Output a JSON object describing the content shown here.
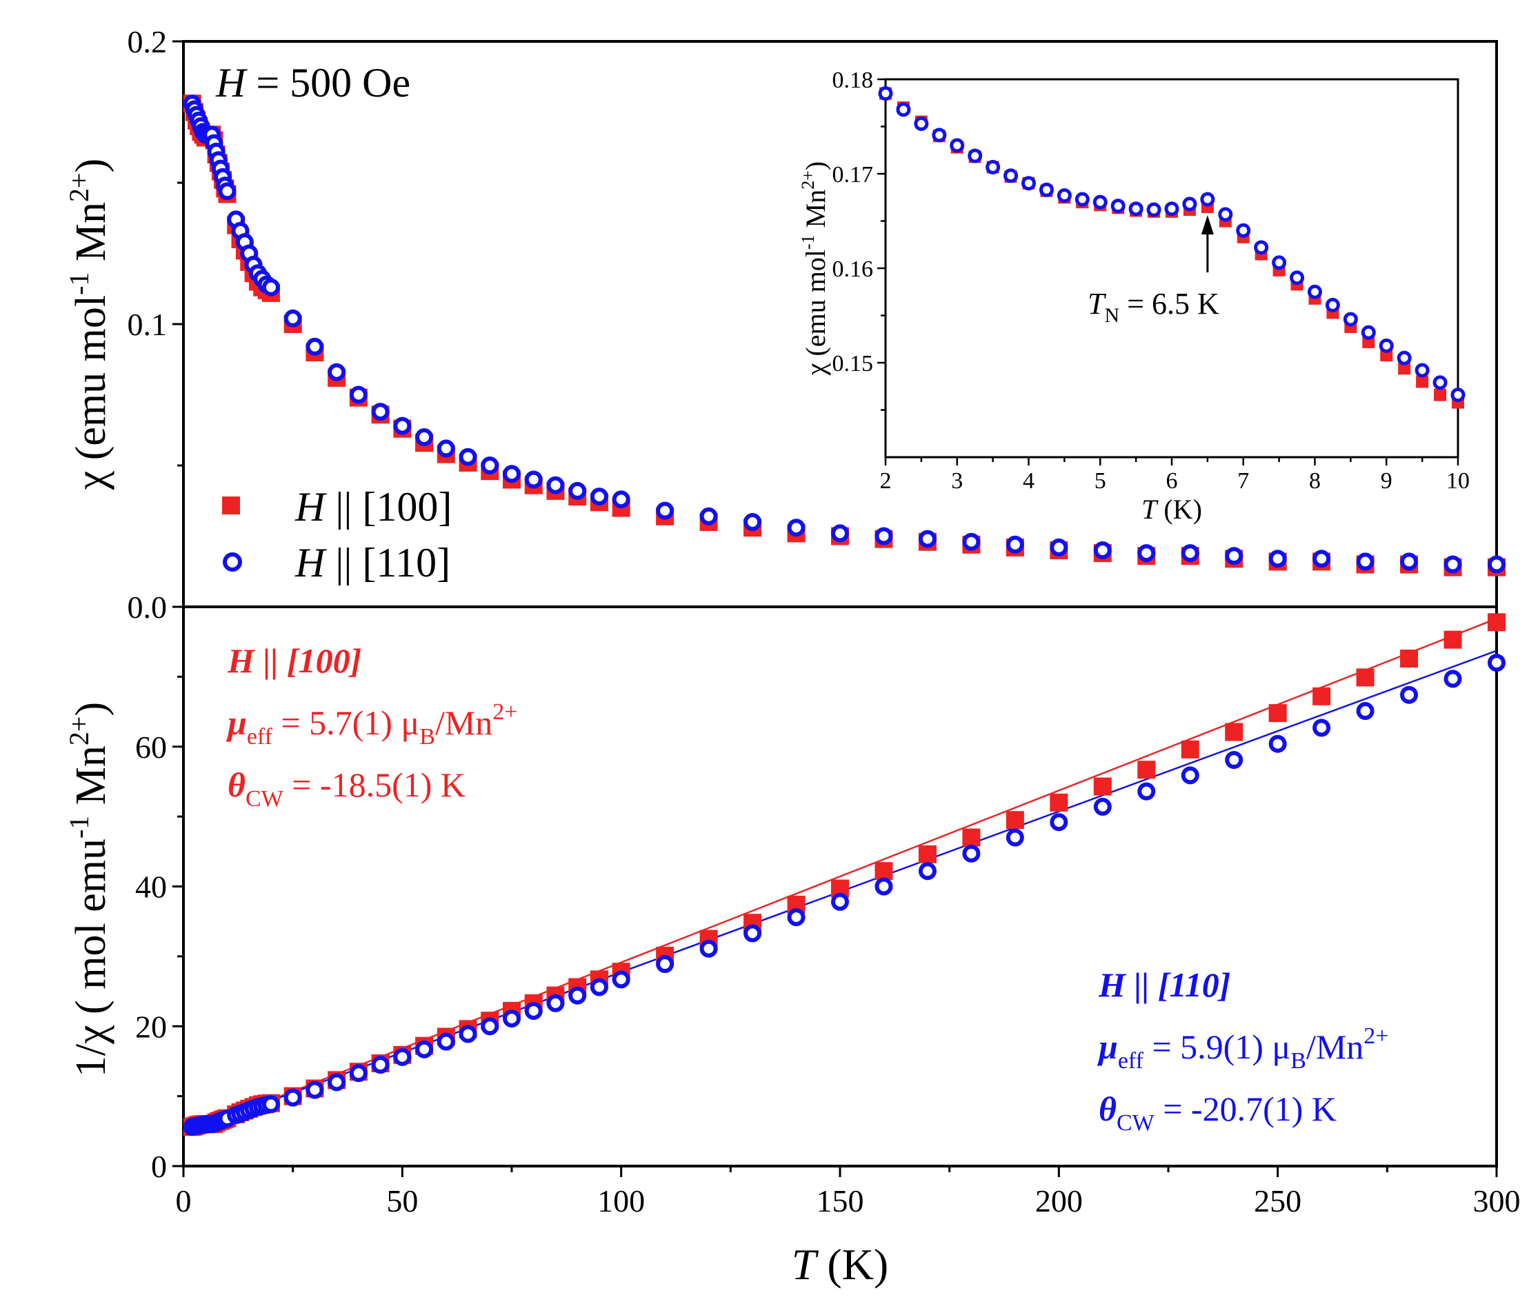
{
  "colors": {
    "red": "#ee2222",
    "blue": "#1111ee",
    "axis": "#000000"
  },
  "chart_data": [
    {
      "id": "top",
      "type": "scatter",
      "title": "",
      "annotation": {
        "H": "H",
        "eq": " = 500 Oe"
      },
      "ylabel": {
        "main": "χ (emu mol",
        "sup1": "-1",
        "mid": " Mn",
        "sup2": "2+",
        "end": ")"
      },
      "xlim": [
        0,
        300
      ],
      "ylim": [
        0,
        0.2
      ],
      "yticks": [
        0.0,
        0.1,
        0.2
      ],
      "ytick_labels": [
        "0.0",
        "0.1",
        "0.2"
      ],
      "legend": {
        "position": "bottom-left",
        "entries": [
          {
            "name": "H || [100]",
            "H": "H",
            "rest": " || [100]",
            "marker": "square",
            "color": "#ee2222"
          },
          {
            "name": "H || [110]",
            "H": "H",
            "rest": " || [110]",
            "marker": "open-circle",
            "color": "#1111ee"
          }
        ]
      },
      "series": [
        {
          "name": "H || [100]",
          "x": [
            2,
            2.5,
            3,
            3.5,
            4,
            4.5,
            5,
            5.5,
            6,
            6.5,
            7,
            7.5,
            8,
            8.5,
            9,
            9.5,
            10,
            12,
            13,
            14,
            15,
            16,
            17,
            18,
            19,
            20,
            25,
            30,
            35,
            40,
            45,
            50,
            55,
            60,
            65,
            70,
            75,
            80,
            85,
            90,
            95,
            100,
            110,
            120,
            130,
            140,
            150,
            160,
            170,
            180,
            190,
            200,
            210,
            220,
            230,
            240,
            250,
            260,
            270,
            280,
            290,
            300
          ],
          "y": [
            0.178,
            0.175,
            0.172,
            0.17,
            0.168,
            0.167,
            0.166,
            0.166,
            0.166,
            0.167,
            0.165,
            0.16,
            0.157,
            0.154,
            0.151,
            0.148,
            0.146,
            0.135,
            0.13,
            0.126,
            0.122,
            0.118,
            0.115,
            0.113,
            0.112,
            0.111,
            0.1,
            0.09,
            0.081,
            0.074,
            0.068,
            0.063,
            0.058,
            0.054,
            0.051,
            0.048,
            0.045,
            0.043,
            0.041,
            0.039,
            0.037,
            0.035,
            0.032,
            0.03,
            0.028,
            0.026,
            0.025,
            0.024,
            0.023,
            0.022,
            0.021,
            0.02,
            0.019,
            0.018,
            0.018,
            0.017,
            0.016,
            0.016,
            0.015,
            0.015,
            0.014,
            0.014
          ]
        },
        {
          "name": "H || [110]",
          "x": [
            2,
            2.5,
            3,
            3.5,
            4,
            4.5,
            5,
            5.5,
            6,
            6.5,
            7,
            7.5,
            8,
            8.5,
            9,
            9.5,
            10,
            12,
            13,
            14,
            15,
            16,
            17,
            18,
            19,
            20,
            25,
            30,
            35,
            40,
            45,
            50,
            55,
            60,
            65,
            70,
            75,
            80,
            85,
            90,
            95,
            100,
            110,
            120,
            130,
            140,
            150,
            160,
            170,
            180,
            190,
            200,
            210,
            220,
            230,
            240,
            250,
            260,
            270,
            280,
            290,
            300
          ],
          "y": [
            0.178,
            0.176,
            0.174,
            0.172,
            0.17,
            0.168,
            0.167,
            0.167,
            0.167,
            0.167,
            0.164,
            0.161,
            0.158,
            0.155,
            0.152,
            0.149,
            0.147,
            0.137,
            0.133,
            0.129,
            0.125,
            0.121,
            0.118,
            0.116,
            0.114,
            0.113,
            0.102,
            0.092,
            0.083,
            0.075,
            0.069,
            0.064,
            0.06,
            0.056,
            0.053,
            0.05,
            0.047,
            0.045,
            0.043,
            0.041,
            0.039,
            0.038,
            0.034,
            0.032,
            0.03,
            0.028,
            0.026,
            0.025,
            0.024,
            0.023,
            0.022,
            0.021,
            0.02,
            0.019,
            0.019,
            0.018,
            0.017,
            0.017,
            0.016,
            0.016,
            0.015,
            0.015
          ]
        }
      ]
    },
    {
      "id": "inset",
      "type": "scatter",
      "xlabel": {
        "T": "T",
        "rest": " (K)"
      },
      "ylabel": {
        "main": "χ (emu mol",
        "sup1": "-1",
        "mid": " Mn",
        "sup2": "2+",
        "end": ")"
      },
      "xlim": [
        2,
        10
      ],
      "ylim": [
        0.14,
        0.18
      ],
      "xticks": [
        2,
        3,
        4,
        5,
        6,
        7,
        8,
        9,
        10
      ],
      "xtick_labels": [
        "2",
        "3",
        "4",
        "5",
        "6",
        "7",
        "8",
        "9",
        "10"
      ],
      "yticks": [
        0.15,
        0.16,
        0.17,
        0.18
      ],
      "ytick_labels": [
        "0.15",
        "0.16",
        "0.17",
        "0.18"
      ],
      "annotation": {
        "T": "T",
        "sub": "N",
        "rest": " = 6.5 K",
        "arrow_x": 6.5
      },
      "series": [
        {
          "name": "H || [100]",
          "x": [
            2,
            2.25,
            2.5,
            2.75,
            3,
            3.25,
            3.5,
            3.75,
            4,
            4.25,
            4.5,
            4.75,
            5,
            5.25,
            5.5,
            5.75,
            6,
            6.25,
            6.5,
            6.75,
            7,
            7.25,
            7.5,
            7.75,
            8,
            8.25,
            8.5,
            8.75,
            9,
            9.25,
            9.5,
            9.75,
            10
          ],
          "y": [
            0.1785,
            0.177,
            0.1755,
            0.174,
            0.1728,
            0.1718,
            0.1707,
            0.1697,
            0.169,
            0.1682,
            0.1675,
            0.167,
            0.1667,
            0.1664,
            0.1661,
            0.166,
            0.166,
            0.1662,
            0.1665,
            0.165,
            0.1633,
            0.1615,
            0.1598,
            0.1583,
            0.1568,
            0.1553,
            0.1538,
            0.1522,
            0.1508,
            0.1494,
            0.148,
            0.1466,
            0.1458
          ]
        },
        {
          "name": "H || [110]",
          "x": [
            2,
            2.25,
            2.5,
            2.75,
            3,
            3.25,
            3.5,
            3.75,
            4,
            4.25,
            4.5,
            4.75,
            5,
            5.25,
            5.5,
            5.75,
            6,
            6.25,
            6.5,
            6.75,
            7,
            7.25,
            7.5,
            7.75,
            8,
            8.25,
            8.5,
            8.75,
            9,
            9.25,
            9.5,
            9.75,
            10
          ],
          "y": [
            0.1785,
            0.1768,
            0.1753,
            0.1741,
            0.173,
            0.1719,
            0.1707,
            0.1698,
            0.169,
            0.1683,
            0.1677,
            0.1673,
            0.167,
            0.1666,
            0.1663,
            0.1662,
            0.1663,
            0.1668,
            0.1673,
            0.1657,
            0.164,
            0.1622,
            0.1606,
            0.159,
            0.1575,
            0.1561,
            0.1546,
            0.1532,
            0.1518,
            0.1505,
            0.1492,
            0.1479,
            0.1466
          ]
        }
      ]
    },
    {
      "id": "bottom",
      "type": "scatter",
      "xlabel": {
        "T": "T",
        "rest": " (K)"
      },
      "ylabel": {
        "main": "1/χ ( mol emu",
        "sup1": "-1",
        "mid": " Mn",
        "sup2": "2+",
        "end": ")"
      },
      "xlim": [
        0,
        300
      ],
      "ylim": [
        0,
        80
      ],
      "xticks": [
        0,
        50,
        100,
        150,
        200,
        250,
        300
      ],
      "xtick_labels": [
        "0",
        "50",
        "100",
        "150",
        "200",
        "250",
        "300"
      ],
      "yticks": [
        0,
        20,
        40,
        60
      ],
      "ytick_labels": [
        "0",
        "20",
        "40",
        "60"
      ],
      "annotations": [
        {
          "series": "H || [100]",
          "line1": "H || [100]",
          "mu_sym": "μ",
          "mu_sub": "eff",
          "mu_rest": " = 5.7(1) μ",
          "muB_sub": "B",
          "mu_tail": "/Mn",
          "mu_sup": "2+",
          "th_sym": "θ",
          "th_sub": "CW",
          "th_rest": " = -18.5(1) K"
        },
        {
          "series": "H || [110]",
          "line1": "H || [110]",
          "mu_sym": "μ",
          "mu_sub": "eff",
          "mu_rest": " = 5.9(1) μ",
          "muB_sub": "B",
          "mu_tail": "/Mn",
          "mu_sup": "2+",
          "th_sym": "θ",
          "th_sub": "CW",
          "th_rest": " = -20.7(1) K"
        }
      ],
      "fits": [
        {
          "series": "H || [100]",
          "theta": -18.5,
          "C": 4.067,
          "x_range": [
            2,
            300
          ]
        },
        {
          "series": "H || [110]",
          "theta": -20.7,
          "C": 4.35,
          "x_range": [
            2,
            300
          ]
        }
      ],
      "series": [
        {
          "name": "H || [100]",
          "x": [
            2,
            2.5,
            3,
            3.5,
            4,
            4.5,
            5,
            5.5,
            6,
            6.5,
            7,
            7.5,
            8,
            8.5,
            9,
            9.5,
            10,
            12,
            13,
            14,
            15,
            16,
            17,
            18,
            19,
            20,
            25,
            30,
            35,
            40,
            45,
            50,
            55,
            60,
            65,
            70,
            75,
            80,
            85,
            90,
            95,
            100,
            110,
            120,
            130,
            140,
            150,
            160,
            170,
            180,
            190,
            200,
            210,
            220,
            230,
            240,
            250,
            260,
            270,
            280,
            290,
            300
          ],
          "y": [
            5.6,
            5.7,
            5.8,
            5.9,
            5.95,
            6.0,
            6.0,
            6.0,
            6.0,
            6.0,
            6.05,
            6.25,
            6.4,
            6.5,
            6.65,
            6.75,
            6.85,
            7.4,
            7.7,
            7.95,
            8.2,
            8.45,
            8.7,
            8.85,
            8.95,
            9.0,
            10.0,
            11.1,
            12.3,
            13.5,
            14.7,
            15.9,
            17.2,
            18.5,
            19.6,
            20.8,
            22.2,
            23.3,
            24.4,
            25.6,
            26.7,
            27.8,
            30.1,
            32.5,
            34.8,
            37.4,
            39.7,
            42.2,
            44.6,
            47.0,
            49.5,
            52.0,
            54.3,
            56.7,
            59.6,
            62.1,
            64.8,
            67.2,
            69.9,
            72.6,
            75.3,
            77.8
          ]
        },
        {
          "name": "H || [110]",
          "x": [
            2,
            2.5,
            3,
            3.5,
            4,
            4.5,
            5,
            5.5,
            6,
            6.5,
            7,
            7.5,
            8,
            8.5,
            9,
            9.5,
            10,
            12,
            13,
            14,
            15,
            16,
            17,
            18,
            19,
            20,
            25,
            30,
            35,
            40,
            45,
            50,
            55,
            60,
            65,
            70,
            75,
            80,
            85,
            90,
            95,
            100,
            110,
            120,
            130,
            140,
            150,
            160,
            170,
            180,
            190,
            200,
            210,
            220,
            230,
            240,
            250,
            260,
            270,
            280,
            290,
            300
          ],
          "y": [
            5.6,
            5.7,
            5.75,
            5.8,
            5.9,
            5.95,
            6.0,
            6.0,
            6.0,
            6.0,
            6.1,
            6.2,
            6.35,
            6.45,
            6.6,
            6.7,
            6.8,
            7.3,
            7.5,
            7.75,
            8.0,
            8.25,
            8.45,
            8.6,
            8.75,
            8.85,
            9.8,
            10.9,
            12.0,
            13.3,
            14.5,
            15.6,
            16.7,
            17.8,
            18.9,
            20.0,
            21.1,
            22.2,
            23.3,
            24.4,
            25.6,
            26.7,
            28.9,
            31.1,
            33.3,
            35.6,
            37.8,
            40.0,
            42.2,
            44.7,
            47.0,
            49.2,
            51.4,
            53.6,
            55.9,
            58.1,
            60.4,
            62.7,
            65.1,
            67.4,
            69.7,
            72.0
          ]
        }
      ]
    }
  ]
}
